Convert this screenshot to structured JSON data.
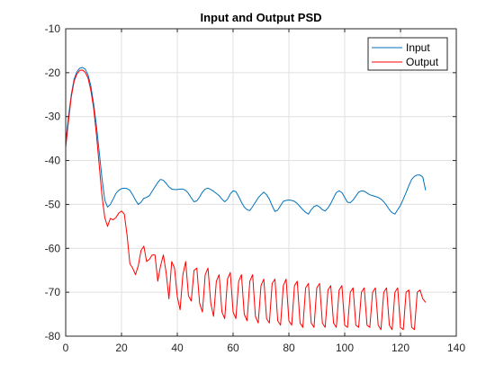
{
  "chart_data": {
    "type": "line",
    "title": "Input and Output PSD",
    "xlabel": "",
    "ylabel": "",
    "xlim": [
      0,
      140
    ],
    "ylim": [
      -80,
      -10
    ],
    "xticks": [
      0,
      20,
      40,
      60,
      80,
      100,
      120,
      140
    ],
    "yticks": [
      -80,
      -70,
      -60,
      -50,
      -40,
      -30,
      -20,
      -10
    ],
    "grid": true,
    "legend_placement": "top-right",
    "series": [
      {
        "name": "Input",
        "color": "#0072BD",
        "x": [
          0,
          1,
          2,
          3,
          4,
          5,
          6,
          7,
          8,
          9,
          10,
          11,
          12,
          13,
          14,
          15,
          16,
          17,
          18,
          19,
          20,
          21,
          22,
          23,
          24,
          25,
          26,
          27,
          28,
          29,
          30,
          31,
          32,
          33,
          34,
          35,
          36,
          37,
          38,
          39,
          40,
          41,
          42,
          43,
          44,
          45,
          46,
          47,
          48,
          49,
          50,
          51,
          52,
          53,
          54,
          55,
          56,
          57,
          58,
          59,
          60,
          61,
          62,
          63,
          64,
          65,
          66,
          67,
          68,
          69,
          70,
          71,
          72,
          73,
          74,
          75,
          76,
          77,
          78,
          79,
          80,
          81,
          82,
          83,
          84,
          85,
          86,
          87,
          88,
          89,
          90,
          91,
          92,
          93,
          94,
          95,
          96,
          97,
          98,
          99,
          100,
          101,
          102,
          103,
          104,
          105,
          106,
          107,
          108,
          109,
          110,
          111,
          112,
          113,
          114,
          115,
          116,
          117,
          118,
          119,
          120,
          121,
          122,
          123,
          124,
          125,
          126,
          127,
          128,
          129
        ],
        "y": [
          -36,
          -30,
          -25,
          -21.5,
          -19.8,
          -19,
          -18.8,
          -19.2,
          -20.5,
          -23,
          -27,
          -32,
          -38,
          -44,
          -49,
          -50.6,
          -50,
          -48.8,
          -47.5,
          -46.8,
          -46.4,
          -46.3,
          -46.4,
          -46.8,
          -47.8,
          -49,
          -50,
          -49.5,
          -48.6,
          -48.4,
          -48,
          -47,
          -46,
          -45,
          -44.3,
          -44.5,
          -45.2,
          -46,
          -46.5,
          -46.6,
          -46.6,
          -46.5,
          -46.5,
          -46.8,
          -47.5,
          -48.5,
          -49.4,
          -49.2,
          -48.3,
          -47.2,
          -46.5,
          -46.3,
          -46.6,
          -47,
          -47.5,
          -48,
          -48.8,
          -49.4,
          -48.8,
          -47.6,
          -46.9,
          -47.1,
          -48.2,
          -49.5,
          -50.6,
          -51.2,
          -51.4,
          -50.5,
          -49.5,
          -48.5,
          -47.8,
          -47.2,
          -47.8,
          -48.8,
          -50.3,
          -51.6,
          -51.3,
          -50.3,
          -49.3,
          -49.1,
          -49,
          -49.1,
          -49.3,
          -49.8,
          -50.5,
          -51.2,
          -51.8,
          -52.2,
          -51.2,
          -50.5,
          -50.2,
          -50.6,
          -51.2,
          -51.5,
          -50.8,
          -49.8,
          -48.5,
          -47.3,
          -46.9,
          -47.3,
          -48.4,
          -49.5,
          -49.6,
          -49,
          -48.1,
          -47.2,
          -46.9,
          -47,
          -47.4,
          -47.8,
          -48,
          -48.2,
          -48.4,
          -48.8,
          -49.4,
          -50.2,
          -51.2,
          -51.9,
          -52.2,
          -51.2,
          -50.2,
          -48.8,
          -47.3,
          -45.7,
          -44.3,
          -43.6,
          -43.3,
          -43.3,
          -43.8,
          -46.8
        ]
      },
      {
        "name": "Output",
        "color": "#FF0000",
        "x": [
          0,
          1,
          2,
          3,
          4,
          5,
          6,
          7,
          8,
          9,
          10,
          11,
          12,
          13,
          14,
          15,
          16,
          17,
          18,
          19,
          20,
          21,
          22,
          23,
          24,
          25,
          26,
          27,
          28,
          29,
          30,
          31,
          32,
          33,
          34,
          35,
          36,
          37,
          38,
          39,
          40,
          41,
          42,
          43,
          44,
          45,
          46,
          47,
          48,
          49,
          50,
          51,
          52,
          53,
          54,
          55,
          56,
          57,
          58,
          59,
          60,
          61,
          62,
          63,
          64,
          65,
          66,
          67,
          68,
          69,
          70,
          71,
          72,
          73,
          74,
          75,
          76,
          77,
          78,
          79,
          80,
          81,
          82,
          83,
          84,
          85,
          86,
          87,
          88,
          89,
          90,
          91,
          92,
          93,
          94,
          95,
          96,
          97,
          98,
          99,
          100,
          101,
          102,
          103,
          104,
          105,
          106,
          107,
          108,
          109,
          110,
          111,
          112,
          113,
          114,
          115,
          116,
          117,
          118,
          119,
          120,
          121,
          122,
          123,
          124,
          125,
          126,
          127,
          128,
          129
        ],
        "y": [
          -37,
          -31,
          -25.5,
          -22,
          -20.3,
          -19.5,
          -19.4,
          -19.9,
          -21.2,
          -24,
          -28,
          -34,
          -41,
          -48,
          -53,
          -55,
          -53.2,
          -53.5,
          -53,
          -52,
          -51.5,
          -52.2,
          -57,
          -63.5,
          -64.5,
          -66,
          -64,
          -60.5,
          -59.5,
          -63,
          -62.5,
          -61.5,
          -61.5,
          -67.5,
          -64,
          -61.5,
          -65.5,
          -71.5,
          -63,
          -64.5,
          -71,
          -74,
          -66,
          -63,
          -70.8,
          -72,
          -65,
          -64.5,
          -72.5,
          -74.5,
          -66,
          -64.5,
          -72.5,
          -75.5,
          -67.5,
          -66,
          -74.5,
          -76,
          -67,
          -65.5,
          -74.5,
          -76,
          -67.5,
          -66,
          -75,
          -76.5,
          -67.5,
          -66,
          -75.5,
          -77,
          -68.5,
          -67,
          -76,
          -77,
          -68,
          -67,
          -76.5,
          -77.5,
          -68.5,
          -67,
          -76.5,
          -77.5,
          -68.5,
          -67.5,
          -77,
          -78,
          -69,
          -68,
          -77,
          -78,
          -69,
          -68,
          -77,
          -78,
          -69.5,
          -68.5,
          -77,
          -78,
          -69.5,
          -68.5,
          -77.5,
          -78,
          -70,
          -69,
          -77.5,
          -78,
          -70,
          -69,
          -77.5,
          -78,
          -70,
          -69,
          -77.5,
          -78.5,
          -70,
          -69,
          -77.5,
          -78.5,
          -70,
          -69,
          -78,
          -78.5,
          -70,
          -69.5,
          -78,
          -78.5,
          -70,
          -69.5,
          -71.5,
          -72.3
        ]
      }
    ]
  }
}
